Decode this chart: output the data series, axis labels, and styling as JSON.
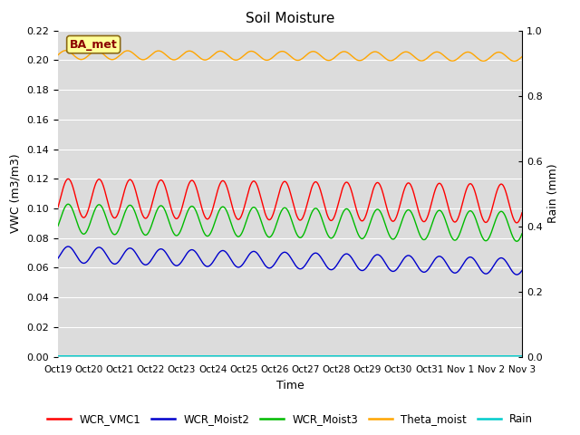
{
  "title": "Soil Moisture",
  "xlabel": "Time",
  "ylabel_left": "VWC (m3/m3)",
  "ylabel_right": "Rain (mm)",
  "ylim_left": [
    0.0,
    0.22
  ],
  "ylim_right": [
    0.0,
    1.0
  ],
  "yticks_left": [
    0.0,
    0.02,
    0.04,
    0.06,
    0.08,
    0.1,
    0.12,
    0.14,
    0.16,
    0.18,
    0.2,
    0.22
  ],
  "yticks_right": [
    0.0,
    0.2,
    0.4,
    0.6,
    0.8,
    1.0
  ],
  "xtick_labels": [
    "Oct 19",
    "Oct 20",
    "Oct 21",
    "Oct 22",
    "Oct 23",
    "Oct 24",
    "Oct 25",
    "Oct 26",
    "Oct 27",
    "Oct 28",
    "Oct 29",
    "Oct 30",
    "Oct 31",
    "Nov 1",
    "Nov 2",
    "Nov 3"
  ],
  "n_days": 15,
  "annotation_text": "BA_met",
  "annotation_color": "#8B0000",
  "annotation_bg": "#FFFF99",
  "annotation_border": "#8B6914",
  "bg_color": "#DCDCDC",
  "colors": {
    "WCR_VMC1": "#FF0000",
    "WCR_Moist2": "#0000CC",
    "WCR_Moist3": "#00BB00",
    "Theta_moist": "#FFA500",
    "Rain": "#00CCCC"
  },
  "legend_labels": [
    "WCR_VMC1",
    "WCR_Moist2",
    "WCR_Moist3",
    "Theta_moist",
    "Rain"
  ]
}
